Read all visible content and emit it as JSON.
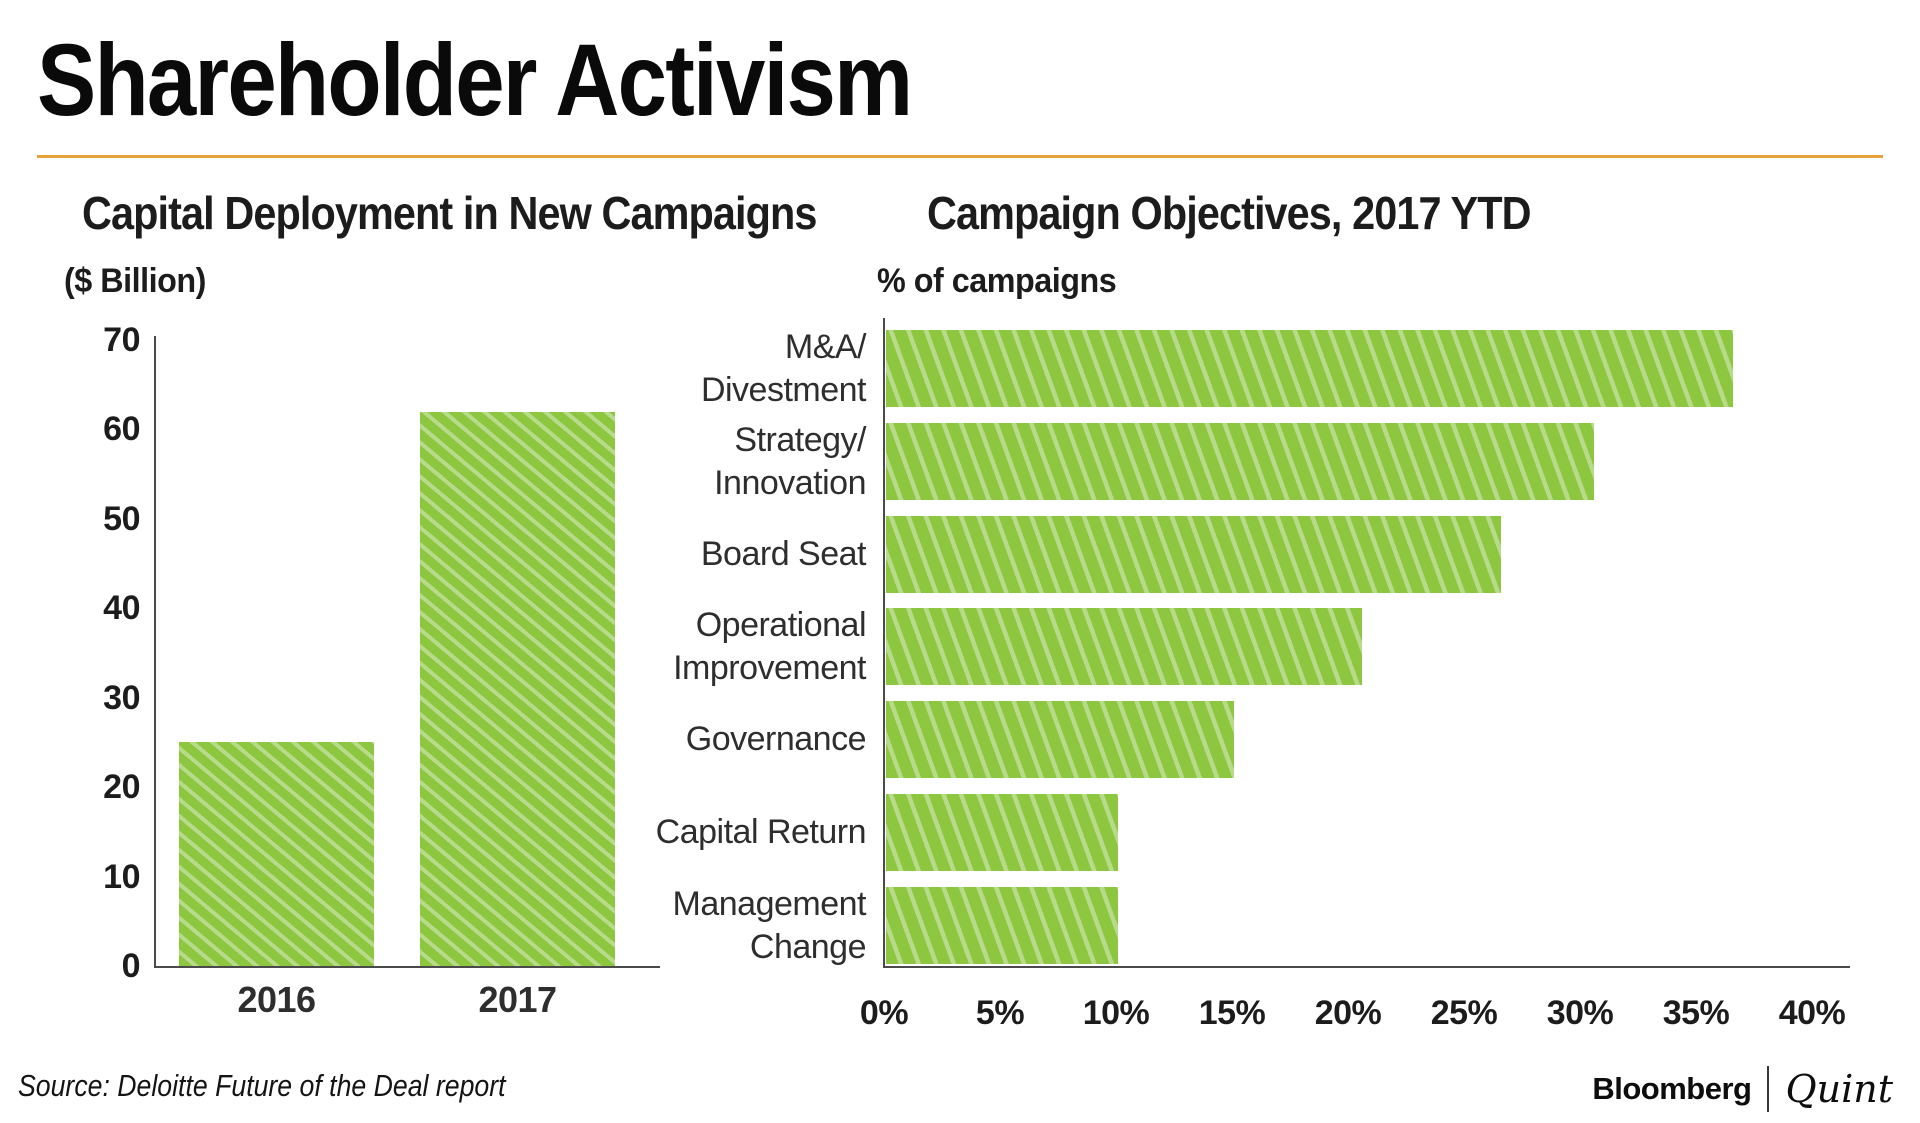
{
  "page": {
    "title": "Shareholder Activism",
    "source_note": "Source: Deloitte Future of the Deal report",
    "brand": {
      "bloomberg": "Bloomberg",
      "quint": "Quint"
    },
    "colors": {
      "accent_rule": "#E8A23C",
      "bar_green": "#8DC63F",
      "bar_stripe": "#B8DB8B",
      "axis": "#4a4a4a",
      "text": "#1c1c1c"
    }
  },
  "chart_data": [
    {
      "type": "bar",
      "orientation": "vertical",
      "title": "Capital Deployment in New Campaigns",
      "unit_label": "($ Billion)",
      "categories": [
        "2016",
        "2017"
      ],
      "values": [
        25,
        62
      ],
      "ylim": [
        0,
        70
      ],
      "yticks": [
        70,
        60,
        50,
        40,
        30,
        20,
        10,
        0
      ],
      "grid": false,
      "hatch": "diagonal-stripes"
    },
    {
      "type": "bar",
      "orientation": "horizontal",
      "title": "Campaign Objectives, 2017 YTD",
      "unit_label": "% of campaigns",
      "categories": [
        "M&A/\nDivestment",
        "Strategy/\nInnovation",
        "Board Seat",
        "Operational\nImprovement",
        "Governance",
        "Capital Return",
        "Management\nChange"
      ],
      "values": [
        36.5,
        30.5,
        26.5,
        20.5,
        15,
        10,
        10
      ],
      "xlim": [
        0,
        40
      ],
      "xticks": [
        "0%",
        "5%",
        "10%",
        "15%",
        "20%",
        "25%",
        "30%",
        "35%",
        "40%"
      ],
      "xtick_values": [
        0,
        5,
        10,
        15,
        20,
        25,
        30,
        35,
        40
      ],
      "grid": false,
      "hatch": "diagonal-stripes"
    }
  ]
}
